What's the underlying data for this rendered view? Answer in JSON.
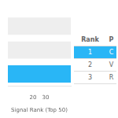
{
  "chart_data": {
    "type": "bar",
    "orientation": "horizontal",
    "categories": [
      null,
      null,
      null
    ],
    "values": [
      50,
      50,
      50
    ],
    "colors": [
      "#29b6f6",
      "#eeeeee",
      "#eeeeee"
    ],
    "xlabel": "Signal Rank (Top 50)",
    "xlim": [
      0,
      50
    ],
    "xticks": [
      20,
      30
    ],
    "grid": false,
    "tick_labels": "x",
    "table": {
      "header": [
        "Rank",
        "P"
      ],
      "rows": [
        [
          "1",
          "C"
        ],
        [
          "2",
          "V"
        ],
        [
          "3",
          "R"
        ]
      ],
      "row_colors": [
        "#29b6f6",
        "#ffffff",
        "#ffffff"
      ]
    }
  }
}
